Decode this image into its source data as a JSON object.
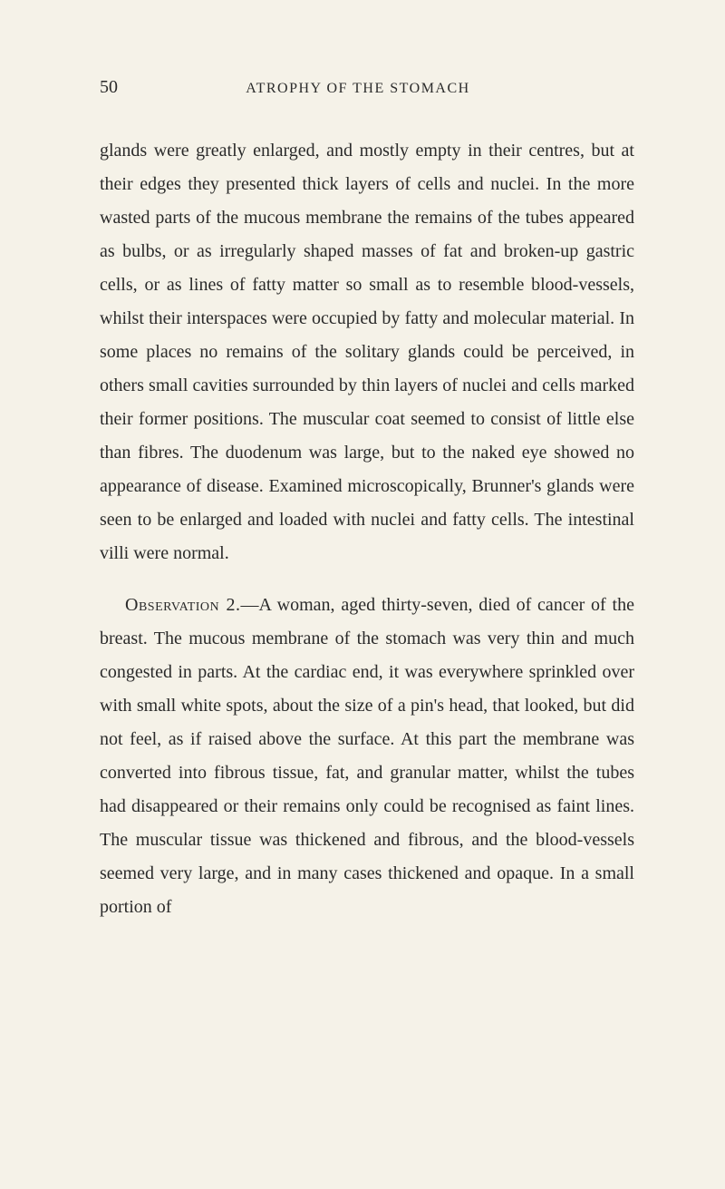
{
  "page": {
    "number": "50",
    "chapter_title": "ATROPHY OF THE STOMACH"
  },
  "paragraphs": {
    "p1": "glands were greatly enlarged, and mostly empty in their centres, but at their edges they presented thick layers of cells and nuclei. In the more wasted parts of the mucous membrane the remains of the tubes appeared as bulbs, or as irregularly shaped masses of fat and broken-up gastric cells, or as lines of fatty matter so small as to resemble blood-vessels, whilst their interspaces were occupied by fatty and molecular material. In some places no remains of the solitary glands could be perceived, in others small cavities surrounded by thin layers of nuclei and cells marked their former positions. The muscular coat seemed to consist of little else than fibres. The duodenum was large, but to the naked eye showed no appearance of disease. Examined microscopically, Brunner's glands were seen to be enlarged and loaded with nuclei and fatty cells. The intestinal villi were normal.",
    "p2_label": "Observation 2.",
    "p2_body": "—A woman, aged thirty-seven, died of cancer of the breast. The mucous membrane of the stomach was very thin and much congested in parts. At the cardiac end, it was everywhere sprinkled over with small white spots, about the size of a pin's head, that looked, but did not feel, as if raised above the surface. At this part the membrane was converted into fibrous tissue, fat, and granular matter, whilst the tubes had disappeared or their remains only could be recognised as faint lines. The muscular tissue was thickened and fibrous, and the blood-vessels seemed very large, and in many cases thickened and opaque. In a small portion of"
  },
  "styling": {
    "background_color": "#f5f2e8",
    "text_color": "#2a2a2a",
    "body_fontsize": 20,
    "line_height": 1.85,
    "title_fontsize": 16,
    "pagenum_fontsize": 20
  }
}
